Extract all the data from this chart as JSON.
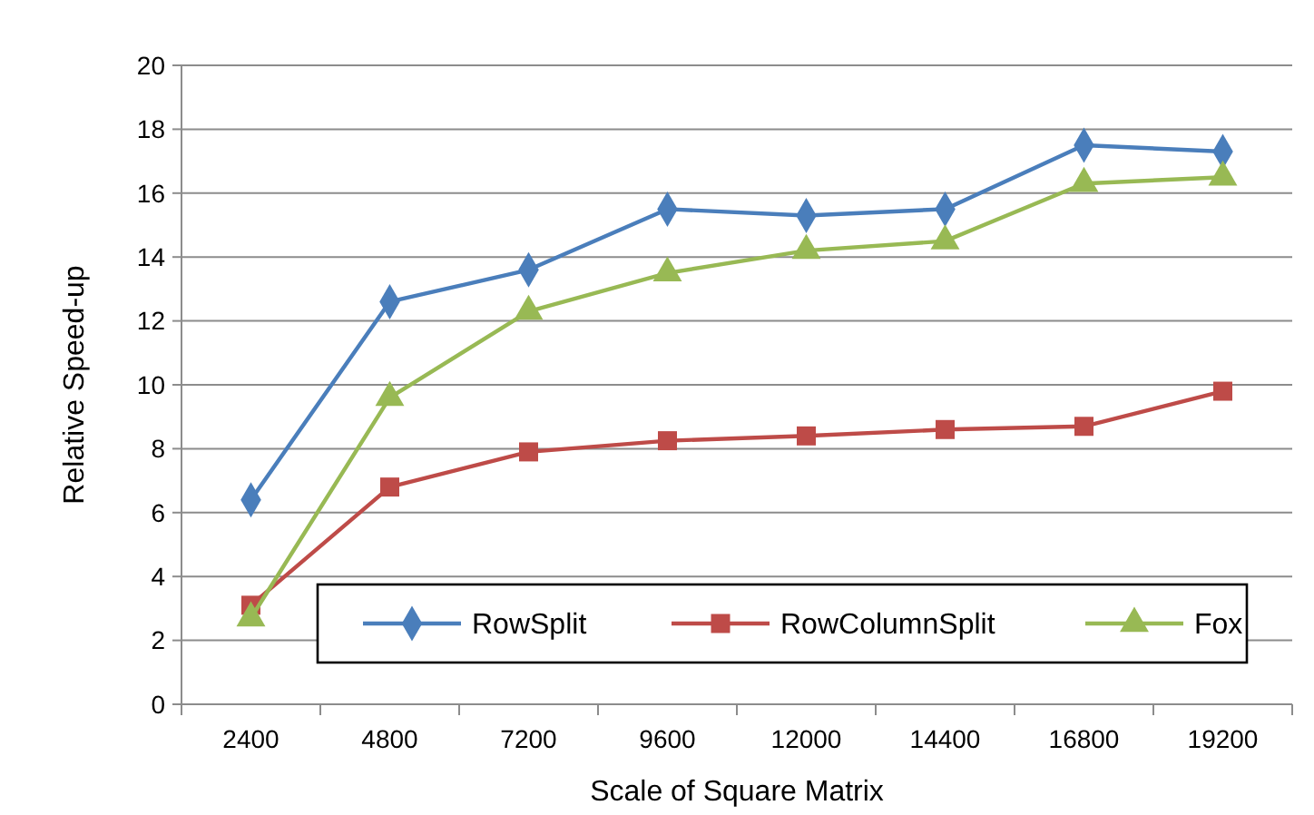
{
  "chart_data": {
    "type": "line",
    "xlabel": "Scale of Square Matrix",
    "ylabel": "Relative Speed-up",
    "categories": [
      "2400",
      "4800",
      "7200",
      "9600",
      "12000",
      "14400",
      "16800",
      "19200"
    ],
    "series": [
      {
        "name": "RowSplit",
        "color": "#4a7ebb",
        "marker": "diamond",
        "values": [
          6.4,
          12.6,
          13.6,
          15.5,
          15.3,
          15.5,
          17.5,
          17.3
        ]
      },
      {
        "name": "RowColumnSplit",
        "color": "#be4b48",
        "marker": "square",
        "values": [
          3.1,
          6.8,
          7.9,
          8.25,
          8.4,
          8.6,
          8.7,
          9.8
        ]
      },
      {
        "name": "Fox",
        "color": "#98b954",
        "marker": "triangle",
        "values": [
          2.7,
          9.6,
          12.3,
          13.5,
          14.2,
          14.5,
          16.3,
          16.5
        ]
      }
    ],
    "ylim": [
      0,
      20
    ],
    "yticks": [
      0,
      2,
      4,
      6,
      8,
      10,
      12,
      14,
      16,
      18,
      20
    ],
    "grid": "y",
    "legend": "bottom"
  }
}
